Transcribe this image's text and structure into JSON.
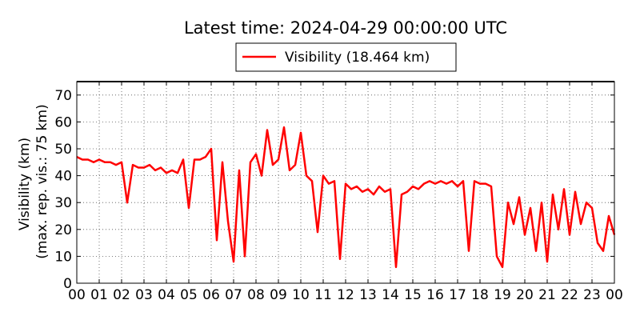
{
  "chart_data": {
    "type": "line",
    "title": "Latest time: 2024-04-29 00:00:00 UTC",
    "y_label": "Visibility (km)",
    "y_sublabel": "(max. rep. vis.: 75 km)",
    "xlim": [
      0,
      24
    ],
    "ylim": [
      0,
      75
    ],
    "yticks": [
      0,
      10,
      20,
      30,
      40,
      50,
      60,
      70
    ],
    "xticks": [
      {
        "value": 0,
        "label": "00"
      },
      {
        "value": 1,
        "label": "01"
      },
      {
        "value": 2,
        "label": "02"
      },
      {
        "value": 3,
        "label": "03"
      },
      {
        "value": 4,
        "label": "04"
      },
      {
        "value": 5,
        "label": "05"
      },
      {
        "value": 6,
        "label": "06"
      },
      {
        "value": 7,
        "label": "07"
      },
      {
        "value": 8,
        "label": "08"
      },
      {
        "value": 9,
        "label": "09"
      },
      {
        "value": 10,
        "label": "10"
      },
      {
        "value": 11,
        "label": "11"
      },
      {
        "value": 12,
        "label": "12"
      },
      {
        "value": 13,
        "label": "13"
      },
      {
        "value": 14,
        "label": "14"
      },
      {
        "value": 15,
        "label": "15"
      },
      {
        "value": 16,
        "label": "16"
      },
      {
        "value": 17,
        "label": "17"
      },
      {
        "value": 18,
        "label": "18"
      },
      {
        "value": 19,
        "label": "19"
      },
      {
        "value": 20,
        "label": "20"
      },
      {
        "value": 21,
        "label": "21"
      },
      {
        "value": 22,
        "label": "22"
      },
      {
        "value": 23,
        "label": "23"
      },
      {
        "value": 24,
        "label": "00"
      }
    ],
    "grid": true,
    "series": [
      {
        "name": "Visibility (18.464 km)",
        "color": "#ff0000",
        "x": [
          0,
          0.25,
          0.5,
          0.75,
          1,
          1.25,
          1.5,
          1.75,
          2,
          2.25,
          2.5,
          2.75,
          3,
          3.25,
          3.5,
          3.75,
          4,
          4.25,
          4.5,
          4.75,
          5,
          5.25,
          5.5,
          5.75,
          6,
          6.25,
          6.5,
          6.75,
          7,
          7.25,
          7.5,
          7.75,
          8,
          8.25,
          8.5,
          8.75,
          9,
          9.25,
          9.5,
          9.75,
          10,
          10.25,
          10.5,
          10.75,
          11,
          11.25,
          11.5,
          11.75,
          12,
          12.25,
          12.5,
          12.75,
          13,
          13.25,
          13.5,
          13.75,
          14,
          14.25,
          14.5,
          14.75,
          15,
          15.25,
          15.5,
          15.75,
          16,
          16.25,
          16.5,
          16.75,
          17,
          17.25,
          17.5,
          17.75,
          18,
          18.25,
          18.5,
          18.75,
          19,
          19.25,
          19.5,
          19.75,
          20,
          20.25,
          20.5,
          20.75,
          21,
          21.25,
          21.5,
          21.75,
          22,
          22.25,
          22.5,
          22.75,
          23,
          23.25,
          23.5,
          23.75,
          24
        ],
        "values": [
          47,
          46,
          46,
          45,
          46,
          45,
          45,
          44,
          45,
          30,
          44,
          43,
          43,
          44,
          42,
          43,
          41,
          42,
          41,
          46,
          28,
          46,
          46,
          47,
          50,
          16,
          45,
          23,
          8,
          42,
          10,
          45,
          48,
          40,
          57,
          44,
          46,
          58,
          42,
          44,
          56,
          40,
          38,
          19,
          40,
          37,
          38,
          9,
          37,
          35,
          36,
          34,
          35,
          33,
          36,
          34,
          35,
          6,
          33,
          34,
          36,
          35,
          37,
          38,
          37,
          38,
          37,
          38,
          36,
          38,
          12,
          38,
          37,
          37,
          36,
          10,
          6,
          30,
          22,
          32,
          18,
          28,
          12,
          30,
          8,
          33,
          20,
          35,
          18,
          34,
          22,
          30,
          28,
          15,
          12,
          25,
          18
        ]
      }
    ]
  }
}
